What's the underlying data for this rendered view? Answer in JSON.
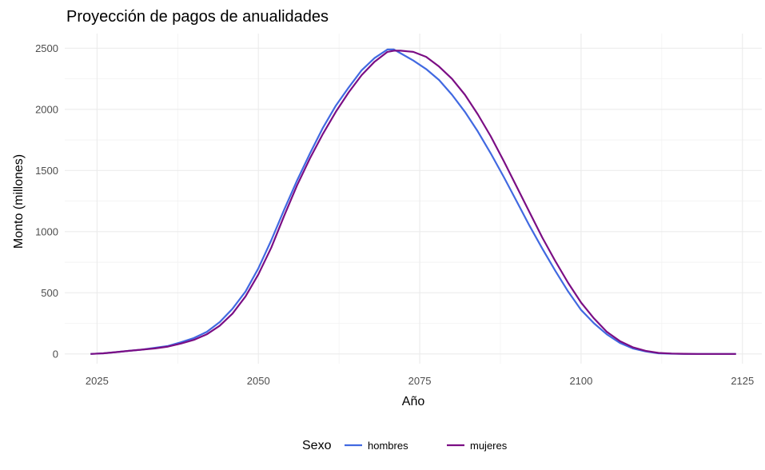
{
  "chart_data": {
    "type": "line",
    "title": "Proyección de pagos de anualidades",
    "xlabel": "Año",
    "ylabel": "Monto (millones)",
    "xlim": [
      2020,
      2128
    ],
    "ylim": [
      -80,
      2620
    ],
    "x_ticks": [
      2025,
      2050,
      2075,
      2100,
      2125
    ],
    "y_ticks": [
      0,
      500,
      1000,
      1500,
      2000,
      2500
    ],
    "grid": true,
    "legend": {
      "title": "Sexo",
      "position": "bottom"
    },
    "series": [
      {
        "name": "hombres",
        "color": "#4169E1",
        "x": [
          2024,
          2026,
          2028,
          2030,
          2032,
          2034,
          2036,
          2038,
          2040,
          2042,
          2044,
          2046,
          2048,
          2050,
          2052,
          2054,
          2056,
          2058,
          2060,
          2062,
          2064,
          2066,
          2068,
          2070,
          2071,
          2072,
          2074,
          2076,
          2078,
          2080,
          2082,
          2084,
          2086,
          2088,
          2090,
          2092,
          2094,
          2096,
          2098,
          2100,
          2102,
          2104,
          2106,
          2108,
          2110,
          2112,
          2114,
          2116,
          2118,
          2120,
          2124
        ],
        "y": [
          0,
          5,
          15,
          25,
          35,
          50,
          65,
          95,
          130,
          180,
          260,
          370,
          510,
          700,
          930,
          1180,
          1420,
          1640,
          1850,
          2030,
          2180,
          2320,
          2420,
          2490,
          2490,
          2460,
          2400,
          2330,
          2240,
          2120,
          1980,
          1820,
          1640,
          1450,
          1250,
          1050,
          860,
          680,
          510,
          360,
          250,
          160,
          90,
          45,
          20,
          5,
          2,
          0,
          0,
          0,
          0
        ]
      },
      {
        "name": "mujeres",
        "color": "#7B0E84",
        "x": [
          2024,
          2026,
          2028,
          2030,
          2032,
          2034,
          2036,
          2038,
          2040,
          2042,
          2044,
          2046,
          2048,
          2050,
          2052,
          2054,
          2056,
          2058,
          2060,
          2062,
          2064,
          2066,
          2068,
          2070,
          2071,
          2072,
          2074,
          2076,
          2078,
          2080,
          2082,
          2084,
          2086,
          2088,
          2090,
          2092,
          2094,
          2096,
          2098,
          2100,
          2102,
          2104,
          2106,
          2108,
          2110,
          2112,
          2114,
          2116,
          2118,
          2120,
          2124
        ],
        "y": [
          0,
          5,
          15,
          25,
          35,
          45,
          60,
          85,
          115,
          160,
          230,
          330,
          470,
          650,
          870,
          1130,
          1380,
          1600,
          1800,
          1980,
          2140,
          2280,
          2390,
          2470,
          2480,
          2480,
          2470,
          2430,
          2350,
          2250,
          2120,
          1960,
          1780,
          1580,
          1370,
          1160,
          950,
          760,
          580,
          420,
          290,
          180,
          105,
          55,
          25,
          8,
          3,
          1,
          0,
          0,
          0
        ]
      }
    ]
  }
}
